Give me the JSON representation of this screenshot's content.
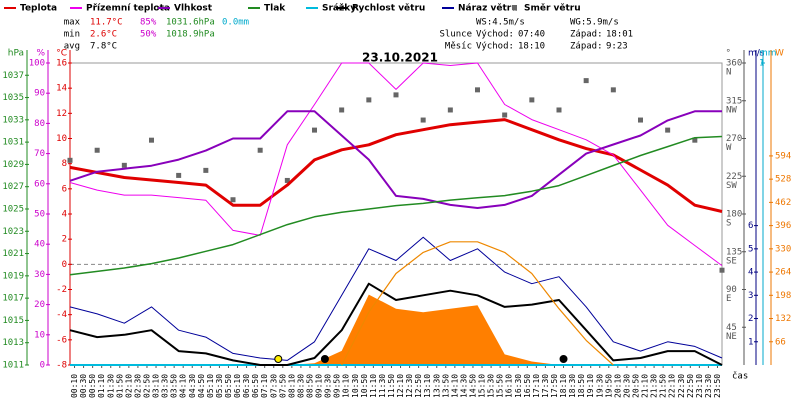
{
  "chart_data": {
    "type": "meteo",
    "title": "23.10.2021",
    "x": [
      "00:00",
      "01:00",
      "02:00",
      "03:00",
      "04:00",
      "05:00",
      "06:00",
      "07:00",
      "08:00",
      "09:00",
      "10:00",
      "11:00",
      "12:00",
      "13:00",
      "14:00",
      "15:00",
      "16:00",
      "17:00",
      "18:00",
      "19:00",
      "20:00",
      "21:00",
      "22:00",
      "23:00",
      "24:00"
    ],
    "xticks": [
      "00:10",
      "00:30",
      "00:50",
      "01:10",
      "01:30",
      "01:50",
      "02:10",
      "02:30",
      "02:50",
      "03:10",
      "03:30",
      "03:50",
      "04:10",
      "04:30",
      "04:50",
      "05:10",
      "05:30",
      "05:50",
      "06:10",
      "06:30",
      "06:50",
      "07:10",
      "07:30",
      "07:50",
      "08:10",
      "08:30",
      "08:50",
      "09:10",
      "09:30",
      "09:50",
      "10:10",
      "10:30",
      "10:50",
      "11:10",
      "11:30",
      "11:50",
      "12:10",
      "12:30",
      "12:50",
      "13:10",
      "13:30",
      "13:50",
      "14:10",
      "14:30",
      "14:50",
      "15:10",
      "15:30",
      "15:50",
      "16:10",
      "16:30",
      "16:50",
      "17:10",
      "17:30",
      "17:50",
      "18:10",
      "18:30",
      "18:50",
      "19:10",
      "19:30",
      "19:50",
      "20:10",
      "20:30",
      "20:50",
      "21:10",
      "21:30",
      "21:50",
      "22:10",
      "22:30",
      "22:50",
      "23:10",
      "23:30",
      "23:50"
    ],
    "xlabel": "čas",
    "axes": {
      "pressure": {
        "label": "hPa",
        "color": "#228b22",
        "lim": [
          1011,
          1038.1
        ],
        "ticks": [
          1011,
          1013,
          1015,
          1017,
          1019,
          1021,
          1023,
          1025,
          1027,
          1029,
          1031,
          1033,
          1035,
          1037
        ]
      },
      "humidity": {
        "label": "%",
        "color": "#cc00cc",
        "lim": [
          0,
          100
        ],
        "ticks": [
          0,
          10,
          20,
          30,
          40,
          50,
          60,
          70,
          80,
          90,
          100
        ]
      },
      "temperature": {
        "label": "°C",
        "color": "#dd0000",
        "lim": [
          -8,
          16
        ],
        "ticks": [
          -8,
          -6,
          -4,
          -2,
          0,
          2,
          4,
          6,
          8,
          10,
          12,
          14,
          16
        ]
      },
      "direction": {
        "label": "°",
        "color": "#555555",
        "lim": [
          0,
          360
        ],
        "ticks": [
          45,
          90,
          135,
          180,
          225,
          270,
          315,
          360
        ],
        "names": [
          "NE",
          "E",
          "SE",
          "S",
          "SW",
          "W",
          "NW",
          "N"
        ]
      },
      "wind": {
        "label": "m/s",
        "color": "#000080",
        "lim": [
          0,
          13
        ],
        "ticks": [
          1,
          2,
          3,
          4,
          5,
          6
        ]
      },
      "rain": {
        "label": "mm",
        "color": "#00aacc",
        "lim": [
          0,
          1
        ],
        "ticks": [
          1
        ]
      },
      "radiation": {
        "label": "W",
        "color": "#ee7700",
        "lim": [
          0,
          858
        ],
        "ticks": [
          66,
          132,
          198,
          264,
          330,
          396,
          462,
          528,
          594
        ]
      }
    },
    "series": [
      {
        "name": "Teplota",
        "color": "#e00000",
        "axis": "temperature",
        "kind": "line",
        "width": 3,
        "values": [
          7.7,
          7.3,
          6.9,
          6.7,
          6.5,
          6.3,
          4.7,
          4.7,
          6.3,
          8.3,
          9.1,
          9.5,
          10.3,
          10.7,
          11.1,
          11.3,
          11.5,
          10.7,
          9.9,
          9.2,
          8.7,
          7.5,
          6.3,
          4.7,
          4.2
        ]
      },
      {
        "name": "Přízemní teplota",
        "color": "#ee00ee",
        "axis": "temperature",
        "kind": "line",
        "width": 1,
        "values": [
          6.5,
          5.9,
          5.5,
          5.5,
          5.3,
          5.1,
          2.7,
          2.3,
          9.5,
          12.7,
          16,
          16,
          13.9,
          16,
          15.8,
          16,
          12.7,
          11.5,
          10.7,
          9.9,
          8.7,
          5.9,
          3.1,
          1.5,
          -0.1
        ]
      },
      {
        "name": "Vlhkost",
        "color": "#8800bb",
        "axis": "humidity",
        "kind": "line",
        "width": 2,
        "values": [
          61,
          64,
          65,
          66,
          68,
          71,
          75,
          75,
          84,
          84,
          76,
          68,
          56,
          55,
          53,
          52,
          53,
          56,
          63,
          70,
          73,
          76,
          81,
          84,
          84
        ]
      },
      {
        "name": "Tlak",
        "color": "#228b22",
        "axis": "pressure",
        "kind": "line",
        "width": 1.5,
        "values": [
          1019.1,
          1019.4,
          1019.7,
          1020.1,
          1020.6,
          1021.2,
          1021.8,
          1022.7,
          1023.6,
          1024.3,
          1024.7,
          1025.0,
          1025.3,
          1025.5,
          1025.8,
          1026.0,
          1026.2,
          1026.6,
          1027.1,
          1028.0,
          1028.9,
          1029.8,
          1030.6,
          1031.4,
          1031.5
        ]
      },
      {
        "name": "Srážky",
        "color": "#00bbdd",
        "axis": "rain",
        "kind": "line",
        "width": 2,
        "values": [
          0,
          0,
          0,
          0,
          0,
          0,
          0,
          0,
          0,
          0,
          0,
          0,
          0,
          0,
          0,
          0,
          0,
          0,
          0,
          0,
          0,
          0,
          0,
          0,
          0
        ]
      },
      {
        "name": "Rychlost větru",
        "color": "#000000",
        "axis": "wind",
        "kind": "line",
        "width": 2,
        "values": [
          1.5,
          1.2,
          1.3,
          1.5,
          0.6,
          0.5,
          0.2,
          0,
          0,
          0.3,
          1.5,
          3.5,
          2.8,
          3.0,
          3.2,
          3.0,
          2.5,
          2.6,
          2.8,
          1.5,
          0.2,
          0.3,
          0.6,
          0.6,
          0
        ]
      },
      {
        "name": "Náraz větru",
        "color": "#000099",
        "axis": "wind",
        "kind": "line",
        "width": 1,
        "values": [
          2.5,
          2.2,
          1.8,
          2.5,
          1.5,
          1.2,
          0.5,
          0.3,
          0.2,
          1.0,
          3.0,
          5.0,
          4.5,
          5.5,
          4.5,
          5.0,
          4.0,
          3.5,
          3.8,
          2.5,
          1.0,
          0.6,
          1.0,
          0.8,
          0.3
        ]
      },
      {
        "name": "Směr větru",
        "color": "#666666",
        "axis": "direction",
        "kind": "points",
        "values": [
          244,
          256,
          238,
          268,
          226,
          232,
          197,
          256,
          220,
          280,
          304,
          316,
          322,
          292,
          304,
          328,
          298,
          316,
          304,
          339,
          328,
          292,
          280,
          268,
          113
        ]
      },
      {
        "color": "#ff7f00",
        "axis": "radiation",
        "kind": "area",
        "values": [
          0,
          0,
          0,
          0,
          0,
          0,
          0,
          0,
          0,
          5,
          40,
          200,
          160,
          150,
          160,
          170,
          30,
          10,
          0,
          0,
          0,
          0,
          0,
          0,
          0
        ]
      },
      {
        "color": "#ee8800",
        "axis": "radiation",
        "kind": "line",
        "width": 1.2,
        "values": [
          null,
          null,
          null,
          null,
          null,
          null,
          null,
          null,
          null,
          null,
          0,
          150,
          260,
          320,
          350,
          350,
          320,
          260,
          160,
          70,
          0,
          null,
          null,
          null,
          null
        ]
      }
    ],
    "stats": [
      {
        "label": "max",
        "values": [
          "11.7°C",
          "85%",
          "1031.6hPa",
          "0.0mm"
        ]
      },
      {
        "label": "min",
        "values": [
          "2.6°C",
          "50%",
          "1018.9hPa"
        ]
      },
      {
        "label": "avg",
        "values": [
          "7.8°C"
        ]
      }
    ],
    "wind_summary": [
      "WS:4.5m/s",
      "WG:5.9m/s"
    ],
    "sun": {
      "label": "Slunce",
      "rise_label": "Východ:",
      "rise": "07:40",
      "set_label": "Západ:",
      "set": "18:01"
    },
    "moon": {
      "label": "Měsíc",
      "rise_label": "Východ:",
      "rise": "18:10",
      "set_label": "Západ:",
      "set": "9:23"
    }
  }
}
